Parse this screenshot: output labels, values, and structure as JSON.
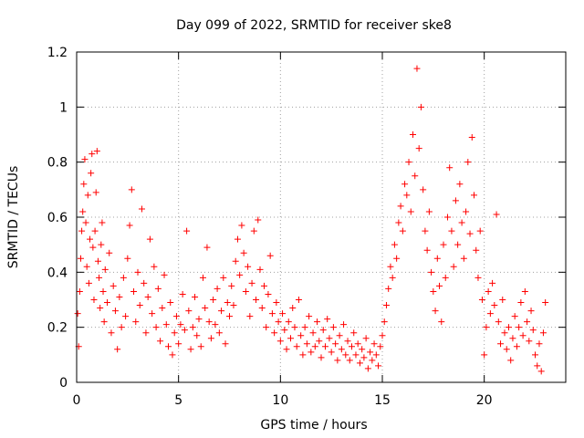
{
  "chart_data": {
    "type": "scatter",
    "title": "Day 099 of 2022, SRMTID for receiver ske8",
    "xlabel": "GPS time / hours",
    "ylabel": "SRMTID / TECUs",
    "xlim": [
      0,
      24
    ],
    "ylim": [
      0,
      1.2
    ],
    "xticks": [
      0,
      5,
      10,
      15,
      20
    ],
    "yticks": [
      0,
      0.2,
      0.4,
      0.6,
      0.8,
      1,
      1.2
    ],
    "xtick_labels": [
      "0",
      "5",
      "10",
      "15",
      "20"
    ],
    "ytick_labels": [
      "0",
      "0.2",
      "0.4",
      "0.6",
      "0.8",
      "1",
      "1.2"
    ],
    "grid": true,
    "marker": "+",
    "series": [
      {
        "name": "ske8",
        "color": "#ff0000",
        "points": [
          [
            0.05,
            0.25
          ],
          [
            0.1,
            0.13
          ],
          [
            0.15,
            0.33
          ],
          [
            0.2,
            0.45
          ],
          [
            0.25,
            0.55
          ],
          [
            0.3,
            0.62
          ],
          [
            0.35,
            0.72
          ],
          [
            0.4,
            0.81
          ],
          [
            0.45,
            0.58
          ],
          [
            0.5,
            0.42
          ],
          [
            0.55,
            0.68
          ],
          [
            0.6,
            0.36
          ],
          [
            0.65,
            0.52
          ],
          [
            0.7,
            0.76
          ],
          [
            0.75,
            0.83
          ],
          [
            0.8,
            0.49
          ],
          [
            0.85,
            0.3
          ],
          [
            0.9,
            0.55
          ],
          [
            0.95,
            0.69
          ],
          [
            1.0,
            0.84
          ],
          [
            1.05,
            0.44
          ],
          [
            1.1,
            0.38
          ],
          [
            1.15,
            0.27
          ],
          [
            1.2,
            0.5
          ],
          [
            1.25,
            0.58
          ],
          [
            1.3,
            0.33
          ],
          [
            1.35,
            0.22
          ],
          [
            1.4,
            0.41
          ],
          [
            1.5,
            0.29
          ],
          [
            1.6,
            0.47
          ],
          [
            1.7,
            0.18
          ],
          [
            1.8,
            0.35
          ],
          [
            1.9,
            0.26
          ],
          [
            2.0,
            0.12
          ],
          [
            2.1,
            0.31
          ],
          [
            2.2,
            0.2
          ],
          [
            2.3,
            0.38
          ],
          [
            2.4,
            0.24
          ],
          [
            2.5,
            0.45
          ],
          [
            2.6,
            0.57
          ],
          [
            2.7,
            0.7
          ],
          [
            2.8,
            0.33
          ],
          [
            2.9,
            0.22
          ],
          [
            3.0,
            0.4
          ],
          [
            3.1,
            0.28
          ],
          [
            3.2,
            0.63
          ],
          [
            3.3,
            0.36
          ],
          [
            3.4,
            0.18
          ],
          [
            3.5,
            0.31
          ],
          [
            3.6,
            0.52
          ],
          [
            3.7,
            0.25
          ],
          [
            3.8,
            0.42
          ],
          [
            3.9,
            0.2
          ],
          [
            4.0,
            0.34
          ],
          [
            4.1,
            0.15
          ],
          [
            4.2,
            0.27
          ],
          [
            4.3,
            0.39
          ],
          [
            4.4,
            0.21
          ],
          [
            4.5,
            0.13
          ],
          [
            4.6,
            0.29
          ],
          [
            4.7,
            0.1
          ],
          [
            4.8,
            0.18
          ],
          [
            4.9,
            0.24
          ],
          [
            5.0,
            0.14
          ],
          [
            5.1,
            0.21
          ],
          [
            5.2,
            0.32
          ],
          [
            5.3,
            0.19
          ],
          [
            5.4,
            0.55
          ],
          [
            5.5,
            0.26
          ],
          [
            5.6,
            0.12
          ],
          [
            5.7,
            0.2
          ],
          [
            5.8,
            0.31
          ],
          [
            5.9,
            0.17
          ],
          [
            6.0,
            0.23
          ],
          [
            6.1,
            0.13
          ],
          [
            6.2,
            0.38
          ],
          [
            6.3,
            0.27
          ],
          [
            6.4,
            0.49
          ],
          [
            6.5,
            0.22
          ],
          [
            6.6,
            0.16
          ],
          [
            6.7,
            0.3
          ],
          [
            6.8,
            0.21
          ],
          [
            6.9,
            0.34
          ],
          [
            7.0,
            0.18
          ],
          [
            7.1,
            0.26
          ],
          [
            7.2,
            0.38
          ],
          [
            7.3,
            0.14
          ],
          [
            7.4,
            0.29
          ],
          [
            7.5,
            0.24
          ],
          [
            7.6,
            0.35
          ],
          [
            7.7,
            0.28
          ],
          [
            7.8,
            0.44
          ],
          [
            7.9,
            0.52
          ],
          [
            8.0,
            0.39
          ],
          [
            8.1,
            0.57
          ],
          [
            8.2,
            0.47
          ],
          [
            8.3,
            0.33
          ],
          [
            8.4,
            0.42
          ],
          [
            8.5,
            0.24
          ],
          [
            8.6,
            0.36
          ],
          [
            8.7,
            0.55
          ],
          [
            8.8,
            0.3
          ],
          [
            8.9,
            0.59
          ],
          [
            9.0,
            0.41
          ],
          [
            9.1,
            0.27
          ],
          [
            9.2,
            0.35
          ],
          [
            9.3,
            0.2
          ],
          [
            9.4,
            0.32
          ],
          [
            9.5,
            0.46
          ],
          [
            9.6,
            0.25
          ],
          [
            9.7,
            0.18
          ],
          [
            9.8,
            0.29
          ],
          [
            9.9,
            0.22
          ],
          [
            10.0,
            0.15
          ],
          [
            10.1,
            0.25
          ],
          [
            10.2,
            0.19
          ],
          [
            10.3,
            0.12
          ],
          [
            10.4,
            0.22
          ],
          [
            10.5,
            0.16
          ],
          [
            10.6,
            0.27
          ],
          [
            10.7,
            0.2
          ],
          [
            10.8,
            0.13
          ],
          [
            10.9,
            0.3
          ],
          [
            11.0,
            0.17
          ],
          [
            11.1,
            0.1
          ],
          [
            11.2,
            0.2
          ],
          [
            11.3,
            0.14
          ],
          [
            11.4,
            0.24
          ],
          [
            11.5,
            0.11
          ],
          [
            11.6,
            0.18
          ],
          [
            11.7,
            0.13
          ],
          [
            11.8,
            0.22
          ],
          [
            11.9,
            0.15
          ],
          [
            12.0,
            0.09
          ],
          [
            12.1,
            0.19
          ],
          [
            12.2,
            0.13
          ],
          [
            12.3,
            0.23
          ],
          [
            12.4,
            0.16
          ],
          [
            12.5,
            0.11
          ],
          [
            12.6,
            0.2
          ],
          [
            12.7,
            0.14
          ],
          [
            12.8,
            0.08
          ],
          [
            12.9,
            0.17
          ],
          [
            13.0,
            0.12
          ],
          [
            13.1,
            0.21
          ],
          [
            13.2,
            0.1
          ],
          [
            13.3,
            0.15
          ],
          [
            13.4,
            0.08
          ],
          [
            13.5,
            0.13
          ],
          [
            13.6,
            0.18
          ],
          [
            13.7,
            0.1
          ],
          [
            13.8,
            0.14
          ],
          [
            13.9,
            0.07
          ],
          [
            14.0,
            0.12
          ],
          [
            14.1,
            0.09
          ],
          [
            14.2,
            0.16
          ],
          [
            14.3,
            0.05
          ],
          [
            14.4,
            0.11
          ],
          [
            14.5,
            0.08
          ],
          [
            14.6,
            0.14
          ],
          [
            14.7,
            0.1
          ],
          [
            14.8,
            0.06
          ],
          [
            14.9,
            0.13
          ],
          [
            15.0,
            0.17
          ],
          [
            15.1,
            0.22
          ],
          [
            15.2,
            0.28
          ],
          [
            15.3,
            0.34
          ],
          [
            15.4,
            0.42
          ],
          [
            15.5,
            0.38
          ],
          [
            15.6,
            0.5
          ],
          [
            15.7,
            0.45
          ],
          [
            15.8,
            0.58
          ],
          [
            15.9,
            0.64
          ],
          [
            16.0,
            0.55
          ],
          [
            16.1,
            0.72
          ],
          [
            16.2,
            0.68
          ],
          [
            16.3,
            0.8
          ],
          [
            16.4,
            0.62
          ],
          [
            16.5,
            0.9
          ],
          [
            16.6,
            0.75
          ],
          [
            16.7,
            1.14
          ],
          [
            16.8,
            0.85
          ],
          [
            16.9,
            1.0
          ],
          [
            17.0,
            0.7
          ],
          [
            17.1,
            0.55
          ],
          [
            17.2,
            0.48
          ],
          [
            17.3,
            0.62
          ],
          [
            17.4,
            0.4
          ],
          [
            17.5,
            0.33
          ],
          [
            17.6,
            0.26
          ],
          [
            17.7,
            0.45
          ],
          [
            17.8,
            0.35
          ],
          [
            17.9,
            0.22
          ],
          [
            18.0,
            0.5
          ],
          [
            18.1,
            0.38
          ],
          [
            18.2,
            0.6
          ],
          [
            18.3,
            0.78
          ],
          [
            18.4,
            0.55
          ],
          [
            18.5,
            0.42
          ],
          [
            18.6,
            0.66
          ],
          [
            18.7,
            0.5
          ],
          [
            18.8,
            0.72
          ],
          [
            18.9,
            0.58
          ],
          [
            19.0,
            0.45
          ],
          [
            19.1,
            0.62
          ],
          [
            19.2,
            0.8
          ],
          [
            19.3,
            0.54
          ],
          [
            19.4,
            0.89
          ],
          [
            19.5,
            0.68
          ],
          [
            19.6,
            0.48
          ],
          [
            19.7,
            0.38
          ],
          [
            19.8,
            0.55
          ],
          [
            19.9,
            0.3
          ],
          [
            20.0,
            0.1
          ],
          [
            20.1,
            0.2
          ],
          [
            20.2,
            0.33
          ],
          [
            20.3,
            0.25
          ],
          [
            20.4,
            0.36
          ],
          [
            20.5,
            0.28
          ],
          [
            20.6,
            0.61
          ],
          [
            20.7,
            0.22
          ],
          [
            20.8,
            0.14
          ],
          [
            20.9,
            0.3
          ],
          [
            21.0,
            0.18
          ],
          [
            21.1,
            0.12
          ],
          [
            21.2,
            0.2
          ],
          [
            21.3,
            0.08
          ],
          [
            21.4,
            0.16
          ],
          [
            21.5,
            0.24
          ],
          [
            21.6,
            0.13
          ],
          [
            21.7,
            0.2
          ],
          [
            21.8,
            0.29
          ],
          [
            21.9,
            0.17
          ],
          [
            22.0,
            0.33
          ],
          [
            22.1,
            0.22
          ],
          [
            22.2,
            0.15
          ],
          [
            22.3,
            0.26
          ],
          [
            22.4,
            0.19
          ],
          [
            22.5,
            0.1
          ],
          [
            22.6,
            0.06
          ],
          [
            22.7,
            0.14
          ],
          [
            22.8,
            0.04
          ],
          [
            22.9,
            0.18
          ],
          [
            23.0,
            0.29
          ]
        ]
      }
    ]
  }
}
